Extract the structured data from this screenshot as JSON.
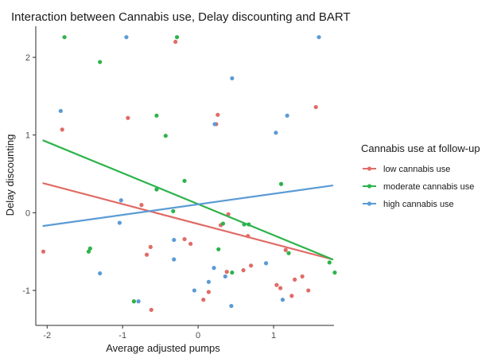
{
  "chart_data": {
    "type": "scatter",
    "title": "Interaction between Cannabis use, Delay discounting and BART",
    "xlabel": "Average adjusted pumps",
    "ylabel": "Delay discounting",
    "xlim": [
      -2.15,
      1.8
    ],
    "ylim": [
      -1.45,
      2.4
    ],
    "xticks": [
      -2,
      -1,
      0,
      1
    ],
    "yticks": [
      -1,
      0,
      1,
      2
    ],
    "grid": false,
    "legend": {
      "title": "Cannabis use at follow-up",
      "placement": "right"
    },
    "series": [
      {
        "name": "low cannabis use",
        "color": "#E06C66",
        "fit": [
          [
            -2.05,
            0.38
          ],
          [
            1.78,
            -0.6
          ]
        ],
        "points": [
          [
            -2.05,
            -0.5
          ],
          [
            -1.8,
            1.07
          ],
          [
            -0.93,
            1.22
          ],
          [
            -0.75,
            0.1
          ],
          [
            -0.68,
            -0.54
          ],
          [
            -0.63,
            -0.44
          ],
          [
            -0.62,
            -1.25
          ],
          [
            -0.3,
            2.2
          ],
          [
            -0.18,
            -0.34
          ],
          [
            -0.1,
            -0.4
          ],
          [
            0.07,
            -1.12
          ],
          [
            0.14,
            -1.02
          ],
          [
            0.24,
            1.14
          ],
          [
            0.26,
            1.26
          ],
          [
            0.3,
            -0.16
          ],
          [
            0.4,
            -0.02
          ],
          [
            0.38,
            -0.76
          ],
          [
            0.6,
            -0.74
          ],
          [
            0.66,
            -0.3
          ],
          [
            0.7,
            -0.68
          ],
          [
            1.04,
            -0.93
          ],
          [
            1.09,
            -0.97
          ],
          [
            1.16,
            -0.48
          ],
          [
            1.24,
            -1.07
          ],
          [
            1.28,
            -0.86
          ],
          [
            1.38,
            -0.82
          ],
          [
            1.46,
            -1.0
          ],
          [
            1.56,
            1.36
          ]
        ]
      },
      {
        "name": "moderate cannabis use",
        "color": "#2DB34A",
        "fit": [
          [
            -2.05,
            0.93
          ],
          [
            1.78,
            -0.6
          ]
        ],
        "points": [
          [
            -1.77,
            2.26
          ],
          [
            -1.3,
            1.94
          ],
          [
            -1.43,
            -0.46
          ],
          [
            -1.45,
            -0.5
          ],
          [
            -0.85,
            -1.14
          ],
          [
            -0.55,
            1.25
          ],
          [
            -0.55,
            0.3
          ],
          [
            -0.43,
            0.99
          ],
          [
            -0.28,
            2.26
          ],
          [
            -0.18,
            0.41
          ],
          [
            -0.33,
            0.02
          ],
          [
            0.27,
            -0.47
          ],
          [
            0.33,
            -0.14
          ],
          [
            0.45,
            -0.77
          ],
          [
            0.61,
            -0.15
          ],
          [
            0.67,
            -0.15
          ],
          [
            1.1,
            0.37
          ],
          [
            1.2,
            -0.52
          ],
          [
            1.74,
            -0.64
          ],
          [
            1.81,
            -0.77
          ]
        ]
      },
      {
        "name": "high cannabis use",
        "color": "#5B9BD5",
        "fit": [
          [
            -2.05,
            -0.17
          ],
          [
            1.78,
            0.35
          ]
        ],
        "points": [
          [
            -1.82,
            1.31
          ],
          [
            -1.02,
            0.16
          ],
          [
            -1.04,
            -0.13
          ],
          [
            -0.95,
            2.26
          ],
          [
            -1.3,
            -0.78
          ],
          [
            -0.79,
            -1.14
          ],
          [
            -0.32,
            -0.35
          ],
          [
            -0.32,
            -0.6
          ],
          [
            -0.05,
            -1.0
          ],
          [
            0.14,
            -0.89
          ],
          [
            0.21,
            -0.71
          ],
          [
            0.36,
            -0.82
          ],
          [
            0.22,
            1.14
          ],
          [
            0.45,
            1.73
          ],
          [
            0.44,
            -1.2
          ],
          [
            0.9,
            -0.65
          ],
          [
            1.03,
            1.03
          ],
          [
            1.18,
            1.25
          ],
          [
            1.12,
            -1.12
          ],
          [
            1.6,
            2.26
          ]
        ]
      }
    ]
  }
}
